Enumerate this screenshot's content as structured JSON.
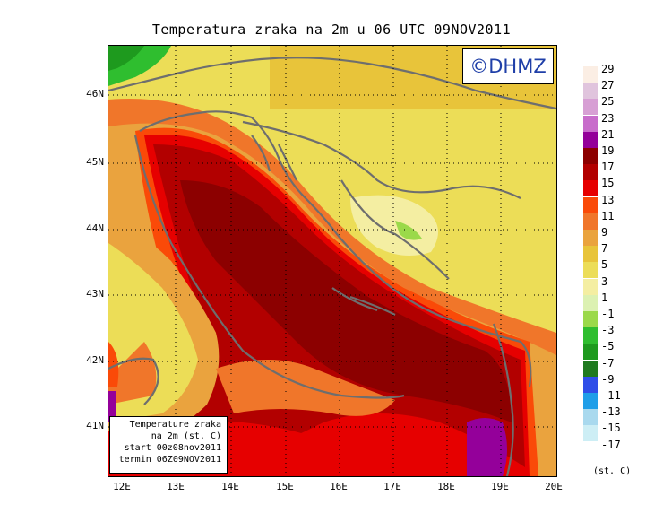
{
  "title": "Temperatura zraka na 2m u 06 UTC 09NOV2011",
  "logo": "©DHMZ",
  "y_ticks": [
    "46N",
    "45N",
    "44N",
    "43N",
    "42N",
    "41N"
  ],
  "x_ticks": [
    "12E",
    "13E",
    "14E",
    "15E",
    "16E",
    "17E",
    "18E",
    "19E",
    "20E"
  ],
  "infobox": {
    "line1": "Temperature zraka",
    "line2": "na 2m (st. C)",
    "line3": "start 00z08nov2011",
    "line4": "termin 06Z09NOV2011"
  },
  "legend": {
    "labels": [
      "29",
      "27",
      "25",
      "23",
      "21",
      "19",
      "17",
      "15",
      "13",
      "11",
      "9",
      "7",
      "5",
      "3",
      "1",
      "-1",
      "-3",
      "-5",
      "-7",
      "-9",
      "-11",
      "-13",
      "-15",
      "-17"
    ],
    "colors": [
      "#fbeee4",
      "#e0c4dd",
      "#d79fd4",
      "#c86ccb",
      "#94009a",
      "#8c0000",
      "#b20000",
      "#e60000",
      "#fa4a08",
      "#f0762a",
      "#eaa33e",
      "#e8c43a",
      "#ecdd57",
      "#f4eea2",
      "#dcf1b2",
      "#9bd94a",
      "#2fbe2f",
      "#1e9a1e",
      "#1f7a1f",
      "#2f4ee8",
      "#1f9ee8",
      "#a9d9ee",
      "#cdeef5",
      "#ffffff"
    ],
    "unit": "(st. C)"
  }
}
